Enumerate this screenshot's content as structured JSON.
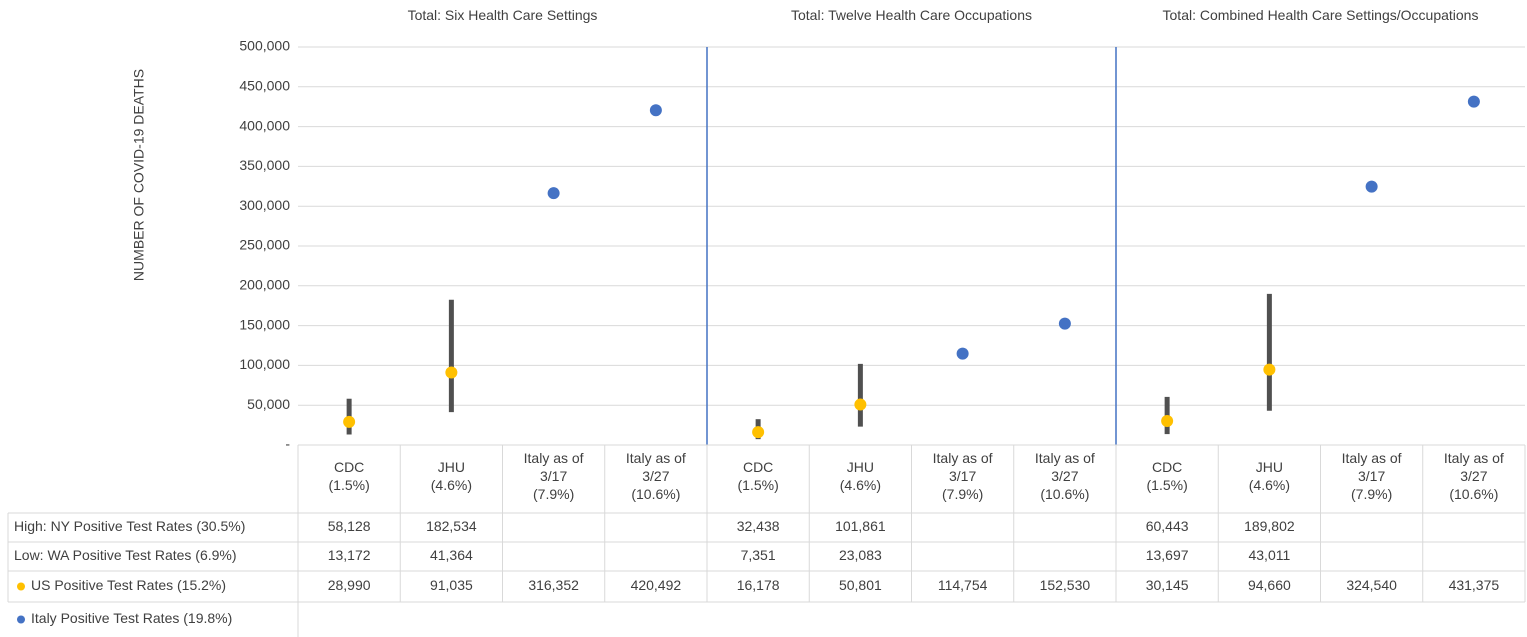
{
  "chart_data": {
    "type": "dot-range",
    "groups": [
      "Total: Six Health Care Settings",
      "Total: Twelve Health Care Occupations",
      "Total: Combined Health Care Settings/Occupations"
    ],
    "y_label": "NUMBER OF COVID-19 DEATHS",
    "categories": [
      "CDC\n(1.5%)",
      "JHU\n(4.6%)",
      "Italy as of\n3/17\n(7.9%)",
      "Italy as of\n3/27\n(10.6%)",
      "CDC\n(1.5%)",
      "JHU\n(4.6%)",
      "Italy as of\n3/17\n(7.9%)",
      "Italy as of\n3/27\n(10.6%)",
      "CDC\n(1.5%)",
      "JHU\n(4.6%)",
      "Italy as of\n3/17\n(7.9%)",
      "Italy as of\n3/27\n(10.6%)"
    ],
    "ylim": [
      0,
      500000
    ],
    "yticks": [
      {
        "value": 0,
        "label": "-"
      },
      {
        "value": 50000,
        "label": "50,000"
      },
      {
        "value": 100000,
        "label": "100,000"
      },
      {
        "value": 150000,
        "label": "150,000"
      },
      {
        "value": 200000,
        "label": "200,000"
      },
      {
        "value": 250000,
        "label": "250,000"
      },
      {
        "value": 300000,
        "label": "300,000"
      },
      {
        "value": 350000,
        "label": "350,000"
      },
      {
        "value": 400000,
        "label": "400,000"
      },
      {
        "value": 450000,
        "label": "450,000"
      },
      {
        "value": 500000,
        "label": "500,000"
      }
    ],
    "grid": true,
    "range_color": "#505050",
    "series": [
      {
        "name": "High: NY Positive Test Rates (30.5%)",
        "color": "#505050",
        "marker": false,
        "values": [
          58128,
          182534,
          null,
          null,
          32438,
          101861,
          null,
          null,
          60443,
          189802,
          null,
          null
        ],
        "value_labels": [
          "58,128",
          "182,534",
          null,
          null,
          "32,438",
          "101,861",
          null,
          null,
          "60,443",
          "189,802",
          null,
          null
        ]
      },
      {
        "name": "Low: WA Positive Test Rates (6.9%)",
        "color": "#505050",
        "marker": false,
        "values": [
          13172,
          41364,
          null,
          null,
          7351,
          23083,
          null,
          null,
          13697,
          43011,
          null,
          null
        ],
        "value_labels": [
          "13,172",
          "41,364",
          null,
          null,
          "7,351",
          "23,083",
          null,
          null,
          "13,697",
          "43,011",
          null,
          null
        ]
      },
      {
        "name": "US Positive Test Rates (15.2%)",
        "color": "#FFC000",
        "marker": true,
        "values": [
          28990,
          91035,
          316352,
          420492,
          16178,
          50801,
          114754,
          152530,
          30145,
          94660,
          324540,
          431375
        ],
        "value_labels": [
          "28,990",
          "91,035",
          "316,352",
          "420,492",
          "16,178",
          "50,801",
          "114,754",
          "152,530",
          "30,145",
          "94,660",
          "324,540",
          "431,375"
        ],
        "point_colors": [
          "#FFC000",
          "#FFC000",
          "#4472C4",
          "#4472C4",
          "#FFC000",
          "#FFC000",
          "#4472C4",
          "#4472C4",
          "#FFC000",
          "#FFC000",
          "#4472C4",
          "#4472C4"
        ]
      },
      {
        "name": "Italy Positive Test Rates (19.8%)",
        "color": "#4472C4",
        "marker": true,
        "values": [
          null,
          null,
          null,
          null,
          null,
          null,
          null,
          null,
          null,
          null,
          null,
          null
        ]
      }
    ]
  }
}
